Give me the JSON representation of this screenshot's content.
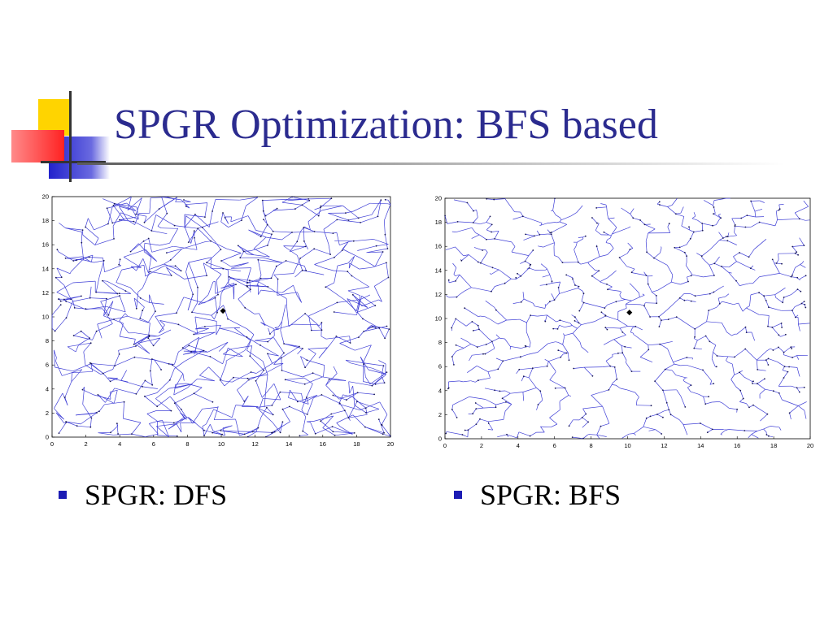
{
  "slide": {
    "title": "SPGR Optimization: BFS based",
    "colors": {
      "title": "#2b2b8f",
      "edges": "#3f3fd6",
      "bullet": "#1c1cb4"
    }
  },
  "bullets": [
    {
      "label": "SPGR: DFS"
    },
    {
      "label": "SPGR: BFS"
    }
  ],
  "chart_data": [
    {
      "type": "scatter",
      "description_key": "left",
      "xlim": [
        0,
        20
      ],
      "ylim": [
        0,
        20
      ],
      "xticks": [
        "0",
        "2",
        "4",
        "6",
        "8",
        "10",
        "12",
        "14",
        "16",
        "18",
        "20"
      ],
      "yticks": [
        "0",
        "2",
        "4",
        "6",
        "8",
        "10",
        "12",
        "14",
        "16",
        "18",
        "20"
      ],
      "root": [
        10.1,
        10.5
      ],
      "n_nodes": 900
    },
    {
      "type": "scatter",
      "description_key": "right",
      "xlim": [
        0,
        20
      ],
      "ylim": [
        0,
        20
      ],
      "xticks": [
        "0",
        "2",
        "4",
        "6",
        "8",
        "10",
        "12",
        "14",
        "16",
        "18",
        "20"
      ],
      "yticks": [
        "0",
        "2",
        "4",
        "6",
        "8",
        "10",
        "12",
        "14",
        "16",
        "18",
        "20"
      ],
      "root": [
        10.1,
        10.5
      ],
      "n_nodes": 900
    }
  ]
}
